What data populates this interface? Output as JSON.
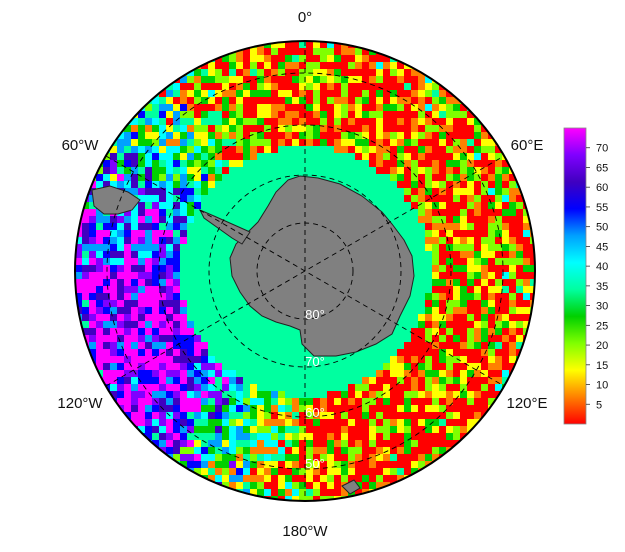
{
  "map": {
    "projection": "south-polar-stereographic",
    "longitude_labels": {
      "top": "0°",
      "upper_right": "60°E",
      "lower_right": "120°E",
      "bottom": "180°W",
      "lower_left": "120°W",
      "upper_left": "60°W"
    },
    "latitude_labels": [
      "80°",
      "70°",
      "60°",
      "50°"
    ],
    "land_color": "#808080",
    "graticule": "dashed",
    "field_description_colors": {
      "ocean_shelf_zone": "#00e8b0",
      "open_ocean_high": "#ff2a00",
      "pacific_sector_high": "#b000ff"
    }
  },
  "colorbar": {
    "ticks": [
      "70",
      "65",
      "60",
      "55",
      "50",
      "45",
      "40",
      "35",
      "30",
      "25",
      "20",
      "15",
      "10",
      "5"
    ],
    "min": 0,
    "max": 75,
    "colors": [
      "#ff0000",
      "#ff8000",
      "#ffff00",
      "#80ff00",
      "#00d000",
      "#00ffa0",
      "#00ffff",
      "#00a0ff",
      "#0000ff",
      "#4000c0",
      "#8000ff",
      "#ff00ff"
    ]
  }
}
